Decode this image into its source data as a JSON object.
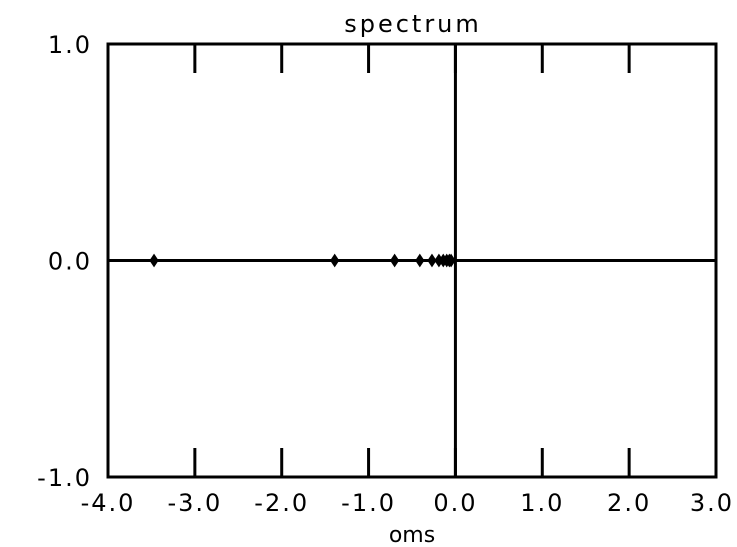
{
  "chart_data": {
    "type": "scatter",
    "title": "spectrum",
    "xlabel": "oms",
    "ylabel": "",
    "xlim": [
      -4.0,
      3.0
    ],
    "ylim": [
      -1.0,
      1.0
    ],
    "xticks": [
      -4.0,
      -3.0,
      -2.0,
      -1.0,
      0.0,
      1.0,
      2.0,
      3.0
    ],
    "xtick_labels": [
      "-4.0",
      "-3.0",
      "-2.0",
      "-1.0",
      "0.0",
      "1.0",
      "2.0",
      "3.0"
    ],
    "yticks": [
      -1.0,
      0.0,
      1.0
    ],
    "ytick_labels": [
      "-1.0",
      "0.0",
      "1.0"
    ],
    "grid": false,
    "reference_lines": {
      "x": 0.0,
      "y": 0.0
    },
    "series": [
      {
        "marker": "diamond",
        "color": "#000000",
        "points": [
          {
            "x": -3.47,
            "y": 0.0
          },
          {
            "x": -1.39,
            "y": 0.0
          },
          {
            "x": -0.7,
            "y": 0.0
          },
          {
            "x": -0.41,
            "y": 0.0
          },
          {
            "x": -0.27,
            "y": 0.0
          },
          {
            "x": -0.19,
            "y": 0.0
          },
          {
            "x": -0.14,
            "y": 0.0
          },
          {
            "x": -0.1,
            "y": 0.0
          },
          {
            "x": -0.07,
            "y": 0.0
          },
          {
            "x": -0.05,
            "y": 0.0
          }
        ]
      }
    ]
  }
}
